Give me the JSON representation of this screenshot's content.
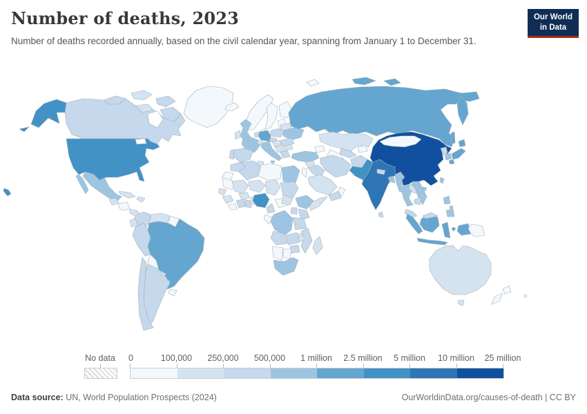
{
  "header": {
    "title": "Number of deaths, 2023",
    "subtitle": "Number of deaths recorded annually, based on the civil calendar year, spanning from January 1 to December 31."
  },
  "logo": {
    "line1": "Our World",
    "line2": "in Data",
    "bg_color": "#102d55",
    "accent_color": "#a62b1c"
  },
  "legend": {
    "no_data_label": "No data",
    "tick_labels": [
      "0",
      "100,000",
      "250,000",
      "500,000",
      "1 million",
      "2.5 million",
      "5 million",
      "10 million",
      "25 million"
    ],
    "bin_colors": [
      "#f3f8fc",
      "#d5e3f1",
      "#c5d8ec",
      "#9dc5e1",
      "#64a6d0",
      "#4292c6",
      "#2e75b5",
      "#11509e"
    ]
  },
  "footer": {
    "source_label": "Data source:",
    "source_value": " UN, World Population Prospects (2024)",
    "credit": "OurWorldinData.org/causes-of-death | CC BY"
  },
  "map": {
    "ocean_color": "#ffffff",
    "border_color": "#a6b0b8",
    "countries": {
      "alaska": 6,
      "hawaii": 6,
      "usa": 6,
      "canada": 3,
      "arctic1": 3,
      "arctic2": 2,
      "arctic3": 3,
      "arctic4": 2,
      "arctic5": 3,
      "greenland": 1,
      "mexico": 4,
      "baja": 4,
      "guatemala": 2,
      "honduras": 1,
      "panama": 2,
      "cuba": 2,
      "hispaniola": 2,
      "colombia": 3,
      "venezuela": 2,
      "guyanas": 1,
      "ecuador": 2,
      "peru": 3,
      "brazil": 5,
      "bolivia": 1,
      "paraguay": 1,
      "uruguay": 1,
      "argentina": 3,
      "chile": 3,
      "iceland": 1,
      "norway": 1,
      "sweden": 1,
      "finland": 1,
      "denmark": 1,
      "uk": 4,
      "ireland": 2,
      "france": 4,
      "benelux": 3,
      "germany": 5,
      "spain": 3,
      "portugal": 3,
      "italy": 4,
      "sicily": 4,
      "switzerland": 2,
      "czechia": 3,
      "austria": 2,
      "poland": 3,
      "baltics": 1,
      "belarus": 2,
      "ukraine": 4,
      "romania": 3,
      "balkans": 2,
      "bulgaria": 2,
      "greece": 3,
      "russia": 5,
      "kamchatka": 5,
      "sakhalin": 5,
      "svalbard": 1,
      "arcticru1": 5,
      "arcticru2": 5,
      "kazakhstan": 2,
      "uzbekistan": 3,
      "turkmenistan": 1,
      "kyrgyzstan": 1,
      "turkey": 4,
      "caucasus": 1,
      "syria": 2,
      "iraq": 3,
      "jordan": 1,
      "saudi": 2,
      "yemen": 3,
      "oman": 1,
      "iran": 3,
      "afghanistan": 3,
      "pakistan": 6,
      "india": 7,
      "nepal": 3,
      "bangladesh": 4,
      "srilanka": 3,
      "myanmar": 4,
      "thailand": 4,
      "laos": 2,
      "vietnam": 4,
      "cambodia": 3,
      "malaysia": 3,
      "china": 8,
      "mongolia": 1,
      "taiwan": 4,
      "hainan": 4,
      "nkorea": 3,
      "skorea": 4,
      "hokkaido": 5,
      "honshu": 5,
      "kyushu": 5,
      "luzon": 4,
      "visayas": 4,
      "mindanao": 4,
      "sumatra": 5,
      "java": 5,
      "kalimantan": 5,
      "malaysiaborneo": 3,
      "sulawesi": 5,
      "moluccas": 5,
      "wpapua": 5,
      "png": 1,
      "timor": 1,
      "australia": 2,
      "tasmania": 2,
      "nznorth": 1,
      "nzsouth": 1,
      "fiji": 1,
      "morocco": 3,
      "wsahara": 1,
      "algeria": 3,
      "tunisia": 2,
      "libya": 1,
      "egypt": 4,
      "mauritania": 1,
      "mali": 2,
      "niger": 2,
      "chad": 2,
      "sudan": 3,
      "senegal": 2,
      "guinea": 2,
      "liberia": 1,
      "ivorycoast": 3,
      "ghana": 3,
      "burkina": 2,
      "benin": 2,
      "nigeria": 6,
      "cameroon": 3,
      "car": 1,
      "ssudan": 2,
      "ethiopia": 4,
      "somalia": 2,
      "kenya": 3,
      "uganda": 3,
      "tanzania": 3,
      "drc": 4,
      "congo": 1,
      "angola": 3,
      "zambia": 3,
      "malawi": 2,
      "mozambique": 3,
      "zimbabwe": 3,
      "namibia": 1,
      "botswana": 1,
      "southafrica": 4,
      "madagascar": 2
    }
  },
  "chart_data": {
    "type": "heatmap",
    "title": "Number of deaths, 2023",
    "subtitle": "Number of deaths recorded annually, based on the civil calendar year, spanning from January 1 to December 31.",
    "legend_bins": [
      {
        "range": "0 – 100,000",
        "color": "#f3f8fc"
      },
      {
        "range": "100,000 – 250,000",
        "color": "#d5e3f1"
      },
      {
        "range": "250,000 – 500,000",
        "color": "#c5d8ec"
      },
      {
        "range": "500,000 – 1 million",
        "color": "#9dc5e1"
      },
      {
        "range": "1 million – 2.5 million",
        "color": "#64a6d0"
      },
      {
        "range": "2.5 million – 5 million",
        "color": "#4292c6"
      },
      {
        "range": "5 million – 10 million",
        "color": "#2e75b5"
      },
      {
        "range": "10 million – 25 million",
        "color": "#11509e"
      }
    ],
    "no_data": {
      "label": "No data",
      "style": "hatched"
    },
    "notable_values": {
      "China": "10–25 million",
      "India": "5–10 million",
      "United States": "2.5–5 million",
      "Nigeria": "2.5–5 million",
      "Pakistan": "2.5–5 million",
      "Russia": "1–2.5 million",
      "Indonesia": "1–2.5 million",
      "Brazil": "1–2.5 million",
      "Japan": "1–2.5 million",
      "Germany": "1–2.5 million",
      "Mexico": "500,000–1 million",
      "Egypt": "500,000–1 million",
      "Ethiopia": "500,000–1 million",
      "DR Congo": "500,000–1 million",
      "South Africa": "500,000–1 million",
      "United Kingdom": "500,000–1 million",
      "France": "500,000–1 million",
      "Italy": "500,000–1 million",
      "Ukraine": "500,000–1 million",
      "Philippines": "500,000–1 million",
      "Vietnam": "500,000–1 million",
      "Thailand": "500,000–1 million",
      "Canada": "250,000–500,000",
      "Argentina": "250,000–500,000",
      "Spain": "250,000–500,000",
      "Iran": "250,000–500,000",
      "Australia": "100,000–250,000",
      "Kazakhstan": "100,000–250,000",
      "Mongolia": "0–100,000",
      "New Zealand": "0–100,000"
    }
  }
}
